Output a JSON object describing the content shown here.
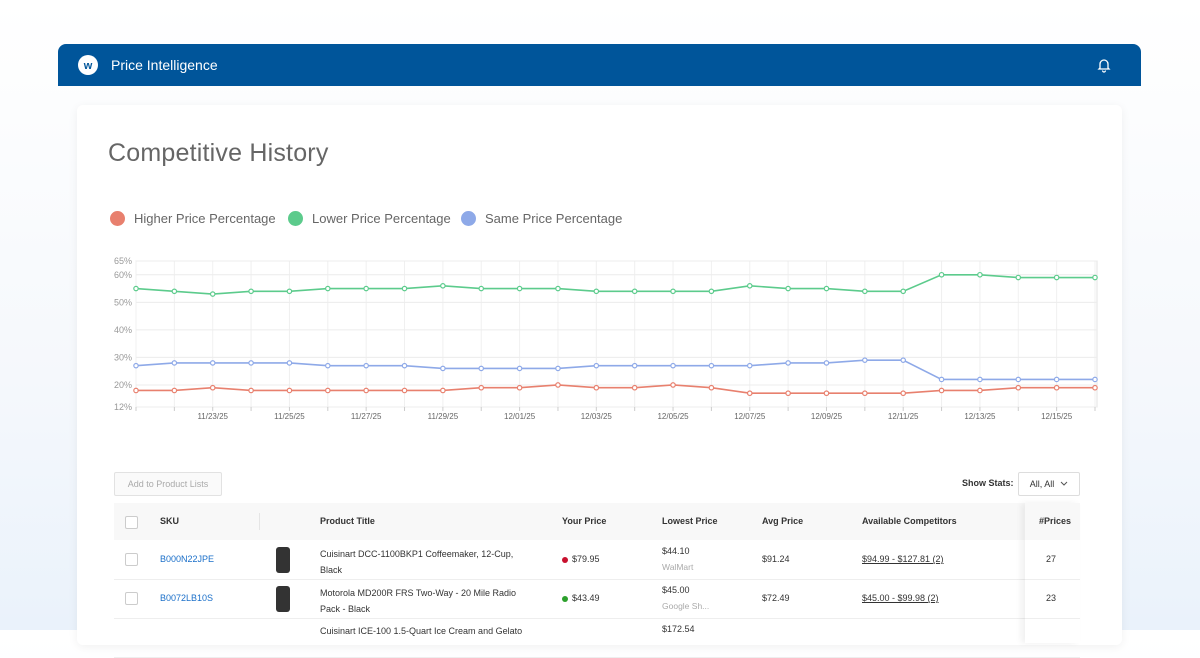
{
  "header": {
    "title": "Price Intelligence"
  },
  "page_title": "Competitive History",
  "chart_data": {
    "type": "line",
    "categories": [
      null,
      null,
      "11/23/25",
      null,
      "11/25/25",
      null,
      "11/27/25",
      null,
      "11/29/25",
      null,
      "12/01/25",
      null,
      "12/03/25",
      null,
      "12/05/25",
      null,
      "12/07/25",
      null,
      "12/09/25",
      null,
      "12/11/25",
      null,
      "12/13/25",
      null,
      "12/15/25",
      null
    ],
    "series": [
      {
        "name": "Higher Price Percentage",
        "color": "#e8806e",
        "values": [
          18,
          18,
          19,
          18,
          18,
          18,
          18,
          18,
          18,
          19,
          19,
          20,
          19,
          19,
          20,
          19,
          17,
          17,
          17,
          17,
          17,
          18,
          18,
          19,
          19,
          19
        ]
      },
      {
        "name": "Lower Price Percentage",
        "color": "#5ccb8c",
        "values": [
          55,
          54,
          53,
          54,
          54,
          55,
          55,
          55,
          56,
          55,
          55,
          55,
          54,
          54,
          54,
          54,
          56,
          55,
          55,
          54,
          54,
          60,
          60,
          59,
          59,
          59
        ]
      },
      {
        "name": "Same Price Percentage",
        "color": "#8ea9e8",
        "values": [
          27,
          28,
          28,
          28,
          28,
          27,
          27,
          27,
          26,
          26,
          26,
          26,
          27,
          27,
          27,
          27,
          27,
          28,
          28,
          29,
          29,
          22,
          22,
          22,
          22,
          22
        ]
      }
    ],
    "ylim": [
      12,
      65
    ],
    "yticks": [
      {
        "value": 12,
        "label": "12%"
      },
      {
        "value": 20,
        "label": "20%"
      },
      {
        "value": 30,
        "label": "30%"
      },
      {
        "value": 40,
        "label": "40%"
      },
      {
        "value": 50,
        "label": "50%"
      },
      {
        "value": 60,
        "label": "60%"
      },
      {
        "value": 65,
        "label": "65%"
      }
    ],
    "grid": true
  },
  "toolbar": {
    "button": "Add to Product Lists",
    "stats_label": "Show Stats:",
    "stats_value": "All, All"
  },
  "table": {
    "columns": [
      "SKU",
      "Product Title",
      "Your Price",
      "Lowest Price",
      "Avg Price",
      "Available Competitors",
      "#Prices"
    ],
    "rows": [
      {
        "sku": "B000N22JPE",
        "title": "Cuisinart DCC-1100BKP1 Coffeemaker, 12-Cup, Black",
        "your_price": "$79.95",
        "status_color": "#c8102e",
        "lowest_price": "$44.10",
        "lowest_source": "WalMart",
        "avg_price": "$91.24",
        "competitors": "$94.99 - $127.81 (2)",
        "prices": 27
      },
      {
        "sku": "B0072LB10S",
        "title": "Motorola MD200R FRS Two-Way - 20 Mile Radio Pack - Black",
        "your_price": "$43.49",
        "status_color": "#2ca02c",
        "lowest_price": "$45.00",
        "lowest_source": "Google Sh...",
        "avg_price": "$72.49",
        "competitors": "$45.00 - $99.98 (2)",
        "prices": 23
      },
      {
        "title": "Cuisinart ICE-100 1.5-Quart Ice Cream and Gelato",
        "lowest_price": "$172.54"
      }
    ]
  }
}
